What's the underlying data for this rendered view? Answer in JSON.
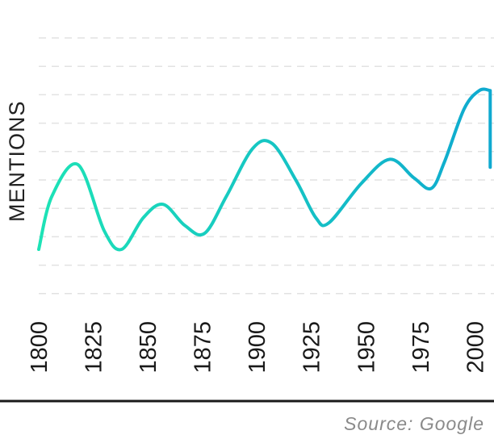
{
  "chart_data": {
    "type": "line",
    "ylabel": "MENTIONS",
    "xlabel": "",
    "title": "",
    "xlim": [
      1800,
      2008
    ],
    "ylim": [
      0,
      10
    ],
    "grid": "horizontal dashed",
    "x_ticks": [
      {
        "value": 1800,
        "label": "1800",
        "muted": false
      },
      {
        "value": 1825,
        "label": "1825",
        "muted": false
      },
      {
        "value": 1850,
        "label": "1850",
        "muted": false
      },
      {
        "value": 1875,
        "label": "1875",
        "muted": false
      },
      {
        "value": 1900,
        "label": "1900",
        "muted": false
      },
      {
        "value": 1925,
        "label": "1925",
        "muted": false
      },
      {
        "value": 1950,
        "label": "1950",
        "muted": false
      },
      {
        "value": 1975,
        "label": "1975",
        "muted": false
      },
      {
        "value": 2000,
        "label": "2000",
        "muted": true
      }
    ],
    "series": [
      {
        "points": [
          [
            1800,
            1.8
          ],
          [
            1806,
            3.8
          ],
          [
            1818,
            5.0
          ],
          [
            1830,
            2.5
          ],
          [
            1838,
            1.8
          ],
          [
            1848,
            3.0
          ],
          [
            1857,
            3.5
          ],
          [
            1867,
            2.7
          ],
          [
            1876,
            2.4
          ],
          [
            1886,
            3.8
          ],
          [
            1898,
            5.6
          ],
          [
            1907,
            5.8
          ],
          [
            1918,
            4.4
          ],
          [
            1927,
            3.0
          ],
          [
            1933,
            2.8
          ],
          [
            1948,
            4.3
          ],
          [
            1961,
            5.2
          ],
          [
            1972,
            4.5
          ],
          [
            1980,
            4.1
          ],
          [
            1986,
            5.1
          ],
          [
            1995,
            7.1
          ],
          [
            2002,
            7.8
          ],
          [
            2007,
            7.8
          ]
        ],
        "colors": [
          "#1de3b6",
          "#0fa9d0"
        ]
      }
    ],
    "tail_drop": [
      2007,
      4.9
    ]
  },
  "source_text": "Source: Google",
  "colors": {
    "line_start": "#1de3b6",
    "line_end": "#0fa9d0",
    "grid": "#e2e2e2",
    "baseline": "#1a1a1a",
    "muted_tick": "#a9a9a9"
  }
}
